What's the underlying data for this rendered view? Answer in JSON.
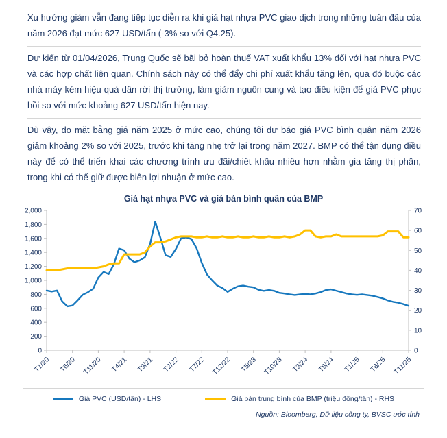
{
  "paragraphs": [
    "Xu hướng giảm vẫn đang tiếp tục diễn ra khi giá hạt nhựa PVC giao dịch trong những tuần đầu của năm 2026 đạt mức 627 USD/tấn (-3% so với Q4.25).",
    "Dự kiến từ 01/04/2026, Trung Quốc sẽ bãi bỏ hoàn thuế VAT xuất khẩu 13% đối với hạt nhựa PVC và các hợp chất liên quan. Chính sách này có thể đẩy chi phí xuất khẩu tăng lên, qua đó buộc các nhà máy kém hiệu quả dần rời thị trường, làm giảm nguồn cung và tạo điều kiện để giá PVC phục hồi so với mức khoảng 627 USD/tấn hiện nay.",
    "Dù vậy, do mặt bằng giá năm 2025 ở mức cao, chúng tôi dự báo giá PVC bình quân năm 2026 giảm khoảng 2% so với 2025, trước khi tăng nhẹ trở lại trong năm 2027. BMP có thể tận dụng điều này để có thể triển khai các chương trình ưu đãi/chiết khấu nhiều hơn nhằm gia tăng thị phần, trong khi có thể giữ được biên lợi nhuận ở mức cao."
  ],
  "source": "Nguồn: Bloomberg, Dữ liệu công ty, BVSC ước tính",
  "text_color": "#1f3864",
  "chart_data": {
    "type": "line",
    "title": "Giá hạt nhựa PVC và giá bán bình quân của BMP",
    "legend_position": "bottom",
    "grid": false,
    "x_labels": [
      "T1/20",
      "T6/20",
      "T11/20",
      "T4/21",
      "T9/21",
      "T2/22",
      "T7/22",
      "T12/22",
      "T5/23",
      "T10/23",
      "T3/24",
      "T8/24",
      "T1/25",
      "T6/25",
      "T11/25"
    ],
    "x_label_step": 5,
    "x_unit": "month (T1/2020 - T11/2025)",
    "left_axis": {
      "min": 0,
      "max": 2000,
      "step": 200
    },
    "right_axis": {
      "min": 0,
      "max": 70,
      "step": 10
    },
    "series": [
      {
        "name": "Giá PVC (USD/tấn) - LHS",
        "axis": "left",
        "color": "#1778be",
        "values": [
          855,
          840,
          855,
          700,
          628,
          640,
          715,
          795,
          830,
          880,
          1040,
          1120,
          1090,
          1230,
          1455,
          1430,
          1310,
          1260,
          1285,
          1330,
          1520,
          1840,
          1610,
          1360,
          1335,
          1450,
          1600,
          1615,
          1590,
          1460,
          1250,
          1085,
          1000,
          925,
          890,
          835,
          880,
          915,
          925,
          910,
          900,
          865,
          850,
          862,
          850,
          822,
          812,
          800,
          790,
          800,
          806,
          800,
          812,
          832,
          862,
          872,
          852,
          832,
          812,
          800,
          792,
          800,
          790,
          780,
          762,
          742,
          712,
          692,
          680,
          660,
          635
        ]
      },
      {
        "name": "Giá bán trung bình của BMP (triệu đồng/tấn) - RHS",
        "axis": "right",
        "color": "#ffc000",
        "values": [
          40,
          40,
          40,
          40.5,
          41,
          41,
          41,
          41,
          41,
          41,
          41.5,
          42,
          43,
          43.5,
          43.5,
          48,
          48,
          48,
          48,
          49,
          52,
          54,
          54,
          54.5,
          55.5,
          56.5,
          57,
          57,
          57,
          56.5,
          56.5,
          57,
          56.5,
          56.5,
          57,
          56.5,
          56.5,
          57,
          56.5,
          56.5,
          57,
          56.5,
          56.5,
          57,
          56.5,
          56.5,
          57,
          56.5,
          57,
          58,
          60,
          60,
          57,
          56.5,
          57,
          57,
          58,
          57,
          57,
          57,
          57,
          57,
          57,
          57,
          57,
          57.5,
          59.5,
          59.5,
          59.5,
          56.5,
          56.5
        ]
      }
    ]
  }
}
